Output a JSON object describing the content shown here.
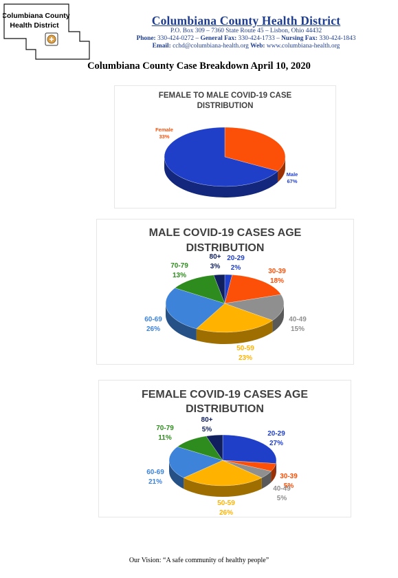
{
  "header": {
    "logo_line1": "Columbiana County",
    "logo_line2": "Health District",
    "org_name": "Columbiana County Health District",
    "address": "P.O. Box 309 – 7360 State Route 45 – Lisbon, Ohio 44432",
    "phone_label": "Phone:",
    "phone": "330-424-0272 –",
    "fax_label": "General Fax:",
    "fax": "330-424-1733 –",
    "nursing_fax_label": "Nursing Fax:",
    "nursing_fax": "330-424-1843",
    "email_label": "Email:",
    "email": "cchd@columbiana-health.org",
    "web_label": "Web:",
    "web": "www.columbiana-health.org"
  },
  "page_title": "Columbiana County Case Breakdown April 10, 2020",
  "footer": "Our Vision: “A safe community of healthy people”",
  "chart_data": [
    {
      "type": "pie",
      "title_line1": "FEMALE TO MALE COVID-19 CASE",
      "title_line2": "DISTRIBUTION",
      "slices": [
        {
          "label": "Female",
          "value": 33,
          "pct": "33%",
          "color": "#fc4f07"
        },
        {
          "label": "Male",
          "value": 67,
          "pct": "67%",
          "color": "#1f3fc9"
        }
      ]
    },
    {
      "type": "pie",
      "title_line1": "MALE COVID-19 CASES AGE",
      "title_line2": "DISTRIBUTION",
      "slices": [
        {
          "label": "20-29",
          "value": 2,
          "pct": "2%",
          "color": "#1f3fc9"
        },
        {
          "label": "30-39",
          "value": 18,
          "pct": "18%",
          "color": "#fc4f07"
        },
        {
          "label": "40-49",
          "value": 15,
          "pct": "15%",
          "color": "#8f8f8f"
        },
        {
          "label": "50-59",
          "value": 23,
          "pct": "23%",
          "color": "#ffb300"
        },
        {
          "label": "60-69",
          "value": 26,
          "pct": "26%",
          "color": "#3d83d9"
        },
        {
          "label": "70-79",
          "value": 13,
          "pct": "13%",
          "color": "#2e8c1e"
        },
        {
          "label": "80+",
          "value": 3,
          "pct": "3%",
          "color": "#10205e"
        }
      ]
    },
    {
      "type": "pie",
      "title_line1": "FEMALE COVID-19 CASES AGE",
      "title_line2": "DISTRIBUTION",
      "slices": [
        {
          "label": "20-29",
          "value": 27,
          "pct": "27%",
          "color": "#1f3fc9"
        },
        {
          "label": "30-39",
          "value": 5,
          "pct": "5%",
          "color": "#fc4f07"
        },
        {
          "label": "40-49",
          "value": 5,
          "pct": "5%",
          "color": "#8f8f8f"
        },
        {
          "label": "50-59",
          "value": 26,
          "pct": "26%",
          "color": "#ffb300"
        },
        {
          "label": "60-69",
          "value": 21,
          "pct": "21%",
          "color": "#3d83d9"
        },
        {
          "label": "70-79",
          "value": 11,
          "pct": "11%",
          "color": "#2e8c1e"
        },
        {
          "label": "80+",
          "value": 5,
          "pct": "5%",
          "color": "#10205e"
        }
      ]
    }
  ]
}
